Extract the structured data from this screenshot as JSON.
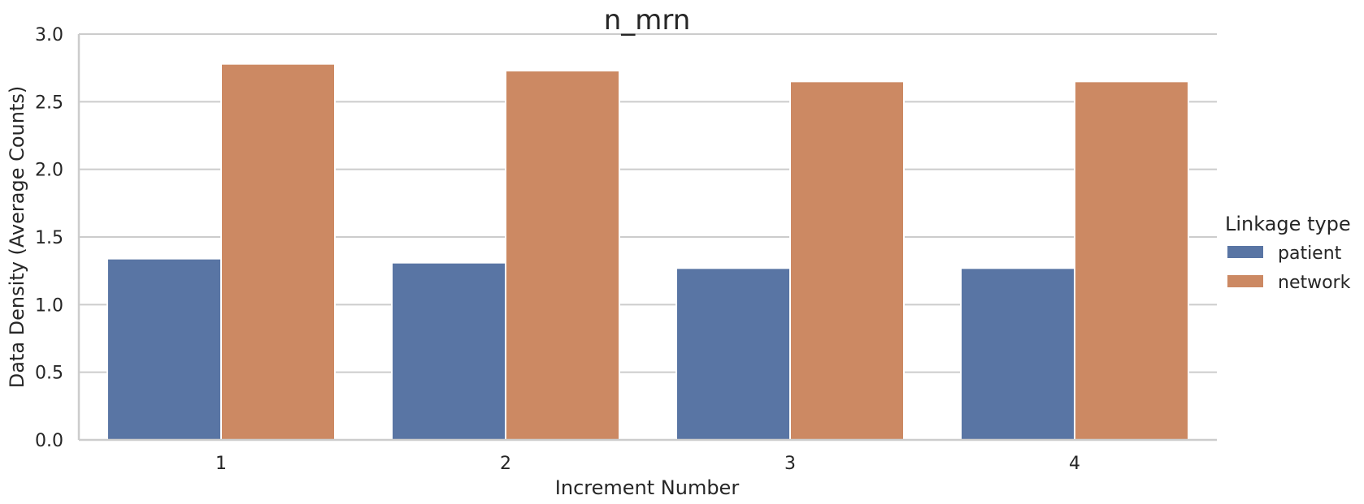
{
  "chart_data": {
    "type": "bar",
    "title": "n_mrn",
    "xlabel": "Increment Number",
    "ylabel": "Data Density (Average Counts)",
    "categories": [
      "1",
      "2",
      "3",
      "4"
    ],
    "series": [
      {
        "name": "patient",
        "values": [
          1.34,
          1.31,
          1.27,
          1.27
        ],
        "color": "#5975a4"
      },
      {
        "name": "network",
        "values": [
          2.78,
          2.73,
          2.65,
          2.65
        ],
        "color": "#cc8963"
      }
    ],
    "ylim": [
      0,
      3.0
    ],
    "yticks": [
      "0.0",
      "0.5",
      "1.0",
      "1.5",
      "2.0",
      "2.5",
      "3.0"
    ],
    "grid": "horizontal",
    "legend": {
      "title": "Linkage type",
      "placement": "right"
    }
  }
}
